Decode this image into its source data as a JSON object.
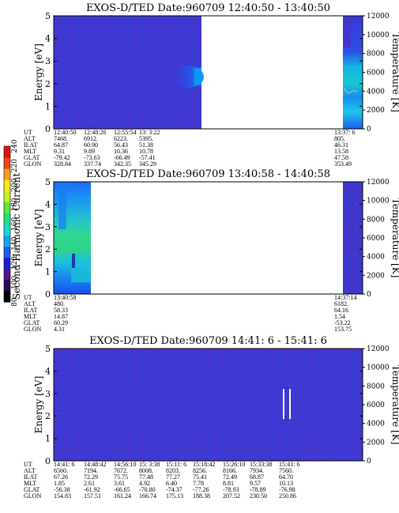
{
  "colorbar": {
    "label": "Second Harmonic Current",
    "ticks": [
      80,
      100,
      120,
      140,
      160,
      180,
      200,
      220,
      240
    ]
  },
  "chart_data": [
    {
      "type": "heatmap",
      "title": "EXOS-D/TED   Date:960709   12:40:50 - 13:40:50",
      "ylabel": "Energy [eV]",
      "y2label": "Temperature [K]",
      "ylim": [
        0,
        5
      ],
      "y2lim": [
        0,
        12000
      ],
      "yticks": [
        0,
        1,
        2,
        3,
        4,
        5
      ],
      "y2ticks": [
        0,
        2000,
        4000,
        6000,
        8000,
        10000,
        12000
      ],
      "data_gap": true,
      "ephemeris": {
        "labels": [
          "UT",
          "ALT",
          "ILAT",
          "MLT",
          "GLAT",
          "GLON"
        ],
        "columns": [
          [
            "12:40:50",
            "7468.",
            "64.87",
            "9.31",
            "-79.42",
            "328.84"
          ],
          [
            "12:48:26",
            "6912.",
            "60.90",
            "9.89",
            "-73.63",
            "337.74"
          ],
          [
            "12:55:54",
            "6223.",
            "56.43",
            "10.36",
            "-66.49",
            "342.35"
          ],
          [
            "13: 3:22",
            "5395.",
            "51.38",
            "10.78",
            "-57.41",
            "345.29"
          ],
          [
            "13:37: 6",
            "805.",
            "46.31",
            "13.58",
            "47.58",
            "353.49"
          ]
        ]
      }
    },
    {
      "type": "heatmap",
      "title": "EXOS-D/TED   Date:960709   13:40:58 - 14:40:58",
      "ylabel": "Energy [eV]",
      "y2label": "Temperature [K]",
      "ylim": [
        0,
        5
      ],
      "y2lim": [
        0,
        12000
      ],
      "yticks": [
        0,
        1,
        2,
        3,
        4,
        5
      ],
      "y2ticks": [
        0,
        2000,
        4000,
        6000,
        8000,
        10000,
        12000
      ],
      "data_gap": true,
      "ephemeris": {
        "labels": [
          "UT",
          "ALT",
          "ILAT",
          "MLT",
          "GLAT",
          "GLON"
        ],
        "columns": [
          [
            "13:40:58",
            "480.",
            "58.33",
            "14.87",
            "60.29",
            "4.31"
          ],
          [
            "14:37:14",
            "6182.",
            "64.16",
            "1.54",
            "-53.22",
            "153.75"
          ]
        ]
      }
    },
    {
      "type": "heatmap",
      "title": "EXOS-D/TED   Date:960709   14:41: 6 - 15:41: 6",
      "ylabel": "Energy [eV]",
      "y2label": "Temperature [K]",
      "ylim": [
        0,
        5
      ],
      "y2lim": [
        0,
        12000
      ],
      "yticks": [
        0,
        1,
        2,
        3,
        4,
        5
      ],
      "y2ticks": [
        0,
        2000,
        4000,
        6000,
        8000,
        10000,
        12000
      ],
      "data_gap": false,
      "ephemeris": {
        "labels": [
          "UT",
          "ALT",
          "ILAT",
          "MLT",
          "GLAT",
          "GLON"
        ],
        "columns": [
          [
            "14:41: 6",
            "6560.",
            "67.26",
            "1.85",
            "-56.38",
            "154.83"
          ],
          [
            "14:48:42",
            "7194.",
            "72.29",
            "2.61",
            "-61.92",
            "157.51"
          ],
          [
            "14:56:10",
            "7672.",
            "75.75",
            "3.61",
            "-66.65",
            "161.24"
          ],
          [
            "15: 3:38",
            "8008.",
            "77.48",
            "4.92",
            "-70.80",
            "166.74"
          ],
          [
            "15:11: 6",
            "8203.",
            "77.27",
            "6.40",
            "-74.37",
            "175.13"
          ],
          [
            "15:18:42",
            "8256.",
            "75.41",
            "7.78",
            "-77.26",
            "188.38"
          ],
          [
            "15:26:10",
            "8166.",
            "72.49",
            "8.81",
            "-78.93",
            "207.52"
          ],
          [
            "15:33:38",
            "7934.",
            "68.87",
            "9.57",
            "-78.89",
            "230.50"
          ],
          [
            "15:41: 6",
            "7560.",
            "64.70",
            "10.13",
            "-76.98",
            "250.86"
          ]
        ]
      }
    }
  ]
}
